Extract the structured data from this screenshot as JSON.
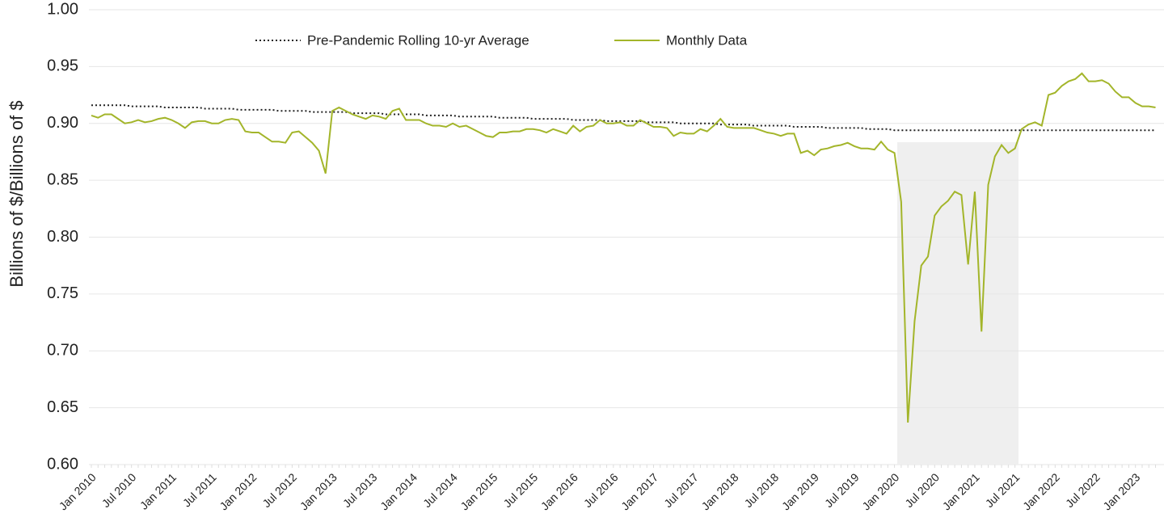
{
  "chart_data": {
    "type": "line",
    "y_label": "Billions of $/Billions of $",
    "categories": [
      "Jan 2010",
      null,
      null,
      null,
      null,
      null,
      "Jul 2010",
      null,
      null,
      null,
      null,
      null,
      "Jan 2011",
      null,
      null,
      null,
      null,
      null,
      "Jul 2011",
      null,
      null,
      null,
      null,
      null,
      "Jan 2012",
      null,
      null,
      null,
      null,
      null,
      "Jul 2012",
      null,
      null,
      null,
      null,
      null,
      "Jan 2013",
      null,
      null,
      null,
      null,
      null,
      "Jul 2013",
      null,
      null,
      null,
      null,
      null,
      "Jan 2014",
      null,
      null,
      null,
      null,
      null,
      "Jul 2014",
      null,
      null,
      null,
      null,
      null,
      "Jan 2015",
      null,
      null,
      null,
      null,
      null,
      "Jul 2015",
      null,
      null,
      null,
      null,
      null,
      "Jan 2016",
      null,
      null,
      null,
      null,
      null,
      "Jul 2016",
      null,
      null,
      null,
      null,
      null,
      "Jan 2017",
      null,
      null,
      null,
      null,
      null,
      "Jul 2017",
      null,
      null,
      null,
      null,
      null,
      "Jan 2018",
      null,
      null,
      null,
      null,
      null,
      "Jul 2018",
      null,
      null,
      null,
      null,
      null,
      "Jan 2019",
      null,
      null,
      null,
      null,
      null,
      "Jul 2019",
      null,
      null,
      null,
      null,
      null,
      "Jan 2020",
      null,
      null,
      null,
      null,
      null,
      "Jul 2020",
      null,
      null,
      null,
      null,
      null,
      "Jan 2021",
      null,
      null,
      null,
      null,
      null,
      "Jul 2021",
      null,
      null,
      null,
      null,
      null,
      "Jan 2022",
      null,
      null,
      null,
      null,
      null,
      "Jul 2022",
      null,
      null,
      null,
      null,
      null,
      "Jan 2023",
      null,
      null,
      null
    ],
    "series": [
      {
        "name": "Pre-Pandemic Rolling 10-yr Average",
        "color": "#222222",
        "dash": "dotted",
        "values": [
          0.916,
          0.916,
          0.916,
          0.916,
          0.916,
          0.916,
          0.915,
          0.915,
          0.915,
          0.915,
          0.915,
          0.914,
          0.914,
          0.914,
          0.914,
          0.914,
          0.914,
          0.913,
          0.913,
          0.913,
          0.913,
          0.913,
          0.912,
          0.912,
          0.912,
          0.912,
          0.912,
          0.912,
          0.911,
          0.911,
          0.911,
          0.911,
          0.911,
          0.91,
          0.91,
          0.91,
          0.91,
          0.91,
          0.91,
          0.909,
          0.909,
          0.909,
          0.909,
          0.909,
          0.908,
          0.908,
          0.908,
          0.908,
          0.908,
          0.908,
          0.907,
          0.907,
          0.907,
          0.907,
          0.907,
          0.906,
          0.906,
          0.906,
          0.906,
          0.906,
          0.906,
          0.905,
          0.905,
          0.905,
          0.905,
          0.905,
          0.904,
          0.904,
          0.904,
          0.904,
          0.904,
          0.904,
          0.903,
          0.903,
          0.903,
          0.903,
          0.903,
          0.902,
          0.902,
          0.902,
          0.902,
          0.902,
          0.902,
          0.901,
          0.901,
          0.901,
          0.901,
          0.901,
          0.9,
          0.9,
          0.9,
          0.9,
          0.9,
          0.9,
          0.899,
          0.899,
          0.899,
          0.899,
          0.899,
          0.898,
          0.898,
          0.898,
          0.898,
          0.898,
          0.898,
          0.897,
          0.897,
          0.897,
          0.897,
          0.897,
          0.896,
          0.896,
          0.896,
          0.896,
          0.896,
          0.896,
          0.895,
          0.895,
          0.895,
          0.895,
          0.894,
          0.894,
          0.894,
          0.894,
          0.894,
          0.894,
          0.894,
          0.894,
          0.894,
          0.894,
          0.894,
          0.894,
          0.894,
          0.894,
          0.894,
          0.894,
          0.894,
          0.894,
          0.894,
          0.894,
          0.894,
          0.894,
          0.894,
          0.894,
          0.894,
          0.894,
          0.894,
          0.894,
          0.894,
          0.894,
          0.894,
          0.894,
          0.894,
          0.894,
          0.894,
          0.894,
          0.894,
          0.894,
          0.894,
          0.894
        ]
      },
      {
        "name": "Monthly Data",
        "color": "#a3b52a",
        "dash": "solid",
        "values": [
          0.907,
          0.905,
          0.908,
          0.908,
          0.904,
          0.9,
          0.901,
          0.903,
          0.901,
          0.902,
          0.904,
          0.905,
          0.903,
          0.9,
          0.896,
          0.901,
          0.902,
          0.902,
          0.9,
          0.9,
          0.903,
          0.904,
          0.903,
          0.893,
          0.892,
          0.892,
          0.888,
          0.884,
          0.884,
          0.883,
          0.892,
          0.893,
          0.888,
          0.883,
          0.876,
          0.856,
          0.911,
          0.914,
          0.911,
          0.908,
          0.906,
          0.904,
          0.907,
          0.906,
          0.904,
          0.911,
          0.913,
          0.903,
          0.903,
          0.903,
          0.9,
          0.898,
          0.898,
          0.897,
          0.9,
          0.897,
          0.898,
          0.895,
          0.892,
          0.889,
          0.888,
          0.892,
          0.892,
          0.893,
          0.893,
          0.895,
          0.895,
          0.894,
          0.892,
          0.895,
          0.893,
          0.891,
          0.898,
          0.893,
          0.897,
          0.898,
          0.903,
          0.9,
          0.9,
          0.901,
          0.898,
          0.898,
          0.903,
          0.9,
          0.897,
          0.897,
          0.896,
          0.889,
          0.892,
          0.891,
          0.891,
          0.895,
          0.893,
          0.898,
          0.904,
          0.897,
          0.896,
          0.896,
          0.896,
          0.896,
          0.894,
          0.892,
          0.891,
          0.889,
          0.891,
          0.891,
          0.874,
          0.876,
          0.872,
          0.877,
          0.878,
          0.88,
          0.881,
          0.883,
          0.88,
          0.878,
          0.878,
          0.877,
          0.884,
          0.877,
          0.874,
          0.831,
          0.637,
          0.726,
          0.775,
          0.783,
          0.819,
          0.827,
          0.832,
          0.84,
          0.837,
          0.776,
          0.84,
          0.717,
          0.846,
          0.871,
          0.881,
          0.874,
          0.878,
          0.895,
          0.899,
          0.901,
          0.898,
          0.925,
          0.927,
          0.933,
          0.937,
          0.939,
          0.944,
          0.937,
          0.937,
          0.938,
          0.935,
          0.928,
          0.923,
          0.923,
          0.918,
          0.915,
          0.915,
          0.914
        ]
      }
    ],
    "ylim": [
      0.6,
      1.0
    ],
    "yticks": [
      {
        "value": 0.6,
        "label": "0.60"
      },
      {
        "value": 0.65,
        "label": "0.65"
      },
      {
        "value": 0.7,
        "label": "0.70"
      },
      {
        "value": 0.75,
        "label": "0.75"
      },
      {
        "value": 0.8,
        "label": "0.80"
      },
      {
        "value": 0.85,
        "label": "0.85"
      },
      {
        "value": 0.9,
        "label": "0.90"
      },
      {
        "value": 0.95,
        "label": "0.95"
      },
      {
        "value": 1.0,
        "label": "1.00"
      }
    ],
    "grid": true,
    "legend": "top"
  }
}
